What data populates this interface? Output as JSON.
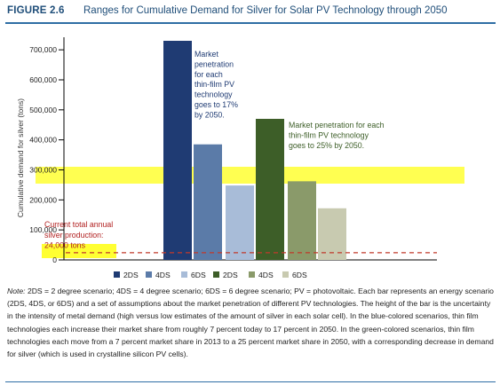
{
  "figure": {
    "number": "FIGURE 2.6",
    "title": "Ranges for Cumulative Demand for Silver for Solar PV Technology through 2050"
  },
  "chart_data": {
    "type": "bar",
    "ylabel": "Cumulative demand for silver (tons)",
    "ylim": [
      0,
      730000
    ],
    "yticks": [
      "0",
      "100,000",
      "200,000",
      "300,000",
      "400,000",
      "500,000",
      "600,000",
      "700,000"
    ],
    "ytick_values": [
      0,
      100000,
      200000,
      300000,
      400000,
      500000,
      600000,
      700000
    ],
    "groups": [
      {
        "name": "blue-colored scenarios",
        "series": [
          {
            "name": "2DS",
            "color": "#1f3b73",
            "values": [
              0,
              730000
            ]
          },
          {
            "name": "4DS",
            "color": "#5b7ba8",
            "values": [
              0,
              385000
            ]
          },
          {
            "name": "6DS",
            "color": "#a8bcd8",
            "values": [
              0,
              248000
            ]
          }
        ]
      },
      {
        "name": "green-colored scenarios",
        "series": [
          {
            "name": "2DS",
            "color": "#3d5e28",
            "values": [
              0,
              470000
            ]
          },
          {
            "name": "4DS",
            "color": "#8a9a6a",
            "values": [
              0,
              262000
            ]
          },
          {
            "name": "6DS",
            "color": "#c8cab0",
            "values": [
              0,
              172000
            ]
          }
        ]
      }
    ],
    "bar_ranges": [
      {
        "series": "2DS",
        "group": "blue",
        "low": 0,
        "high": 730000
      },
      {
        "series": "4DS",
        "group": "blue",
        "low": 0,
        "high": 385000
      },
      {
        "series": "6DS",
        "group": "blue",
        "low": 0,
        "high": 248000
      },
      {
        "series": "2DS",
        "group": "green",
        "low": 0,
        "high": 470000
      },
      {
        "series": "4DS",
        "group": "green",
        "low": 0,
        "high": 262000
      },
      {
        "series": "6DS",
        "group": "green",
        "low": 0,
        "high": 172000
      }
    ],
    "reference_line": {
      "value": 24000,
      "color": "#c0392b",
      "style": "dashed"
    },
    "highlight_value": 300000,
    "annotations": {
      "blue": [
        "Market",
        "penetration",
        "for each",
        "thin-film PV",
        "technology",
        "goes to 17%",
        "by 2050."
      ],
      "green": [
        "Market penetration for each",
        "thin-film PV technology",
        "goes to 25% by 2050."
      ],
      "current": [
        "Current total annual",
        "silver production:",
        "24,000 tons"
      ]
    },
    "legend": [
      "2DS",
      "4DS",
      "6DS",
      "2DS",
      "4DS",
      "6DS"
    ],
    "legend_colors": [
      "#1f3b73",
      "#5b7ba8",
      "#a8bcd8",
      "#3d5e28",
      "#8a9a6a",
      "#c8cab0"
    ],
    "legend_position": "bottom",
    "grid": false
  },
  "note": {
    "label": "Note:",
    "text": "2DS = 2 degree scenario; 4DS = 4 degree scenario; 6DS = 6 degree scenario; PV = photovoltaic. Each bar represents an energy scenario (2DS, 4DS, or 6DS) and a set of assumptions about the market penetration of different PV technologies. The height of the bar is the uncertainty in the intensity of metal demand (high versus low estimates of the amount of silver in each solar cell). In the blue-colored scenarios, thin film technologies each increase their market share from roughly 7 percent today to 17 percent in 2050. In the green-colored scenarios, thin film technologies each move from a 7 percent market share in 2013 to a 25 percent market share in 2050, with a corresponding decrease in demand for silver (which is used in crystalline silicon PV cells)."
  }
}
